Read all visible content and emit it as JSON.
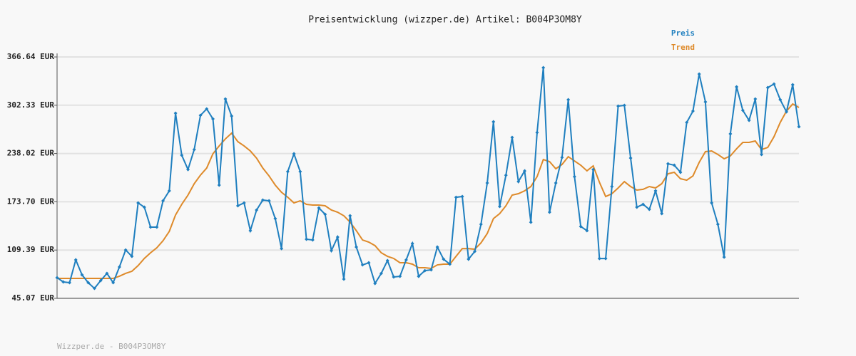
{
  "chart_data": {
    "type": "line",
    "title": "Preisentwicklung (wizzper.de) Artikel: B004P3OM8Y",
    "legend": "top-right",
    "grid": true,
    "categories": [
      null,
      null,
      null,
      null,
      null,
      null,
      null,
      null,
      null,
      null,
      null,
      null,
      null,
      null,
      null,
      null,
      null,
      null,
      null,
      null,
      null,
      null,
      null,
      null,
      null,
      null,
      null,
      null,
      null,
      null,
      null,
      null,
      null,
      null,
      null,
      null,
      null,
      null,
      null,
      null,
      null,
      null,
      null,
      null,
      null,
      null,
      null,
      null,
      null,
      null,
      null,
      null,
      null,
      null,
      null,
      null,
      null,
      null,
      null,
      null,
      null,
      null,
      null,
      null,
      null,
      null,
      null,
      null,
      null,
      null,
      null,
      null,
      null,
      null,
      null,
      null,
      null,
      null,
      null,
      null,
      null,
      null,
      null,
      null,
      null,
      null,
      null,
      null,
      null,
      null,
      null,
      null,
      null,
      null,
      null,
      null,
      null,
      null,
      null,
      null,
      null,
      null,
      null,
      null,
      null,
      null,
      null,
      null,
      null,
      null,
      null,
      null,
      null,
      null,
      null,
      null,
      null,
      null,
      null,
      null
    ],
    "ylim": [
      45.07,
      366.64
    ],
    "yticks": [
      {
        "value": 45.07,
        "label": "45.07 EUR"
      },
      {
        "value": 109.39,
        "label": "109.39 EUR"
      },
      {
        "value": 173.7,
        "label": "173.70 EUR"
      },
      {
        "value": 238.02,
        "label": "238.02 EUR"
      },
      {
        "value": 302.33,
        "label": "302.33 EUR"
      },
      {
        "value": 366.64,
        "label": "366.64 EUR"
      }
    ],
    "series": [
      {
        "name": "Preis",
        "color": "#1f7fbf",
        "markers": true,
        "values": [
          72.6,
          66.9,
          65.9,
          96.3,
          76.4,
          65.9,
          58.3,
          68.8,
          78.3,
          65.9,
          86.8,
          109.5,
          101.0,
          172.2,
          166.5,
          139.9,
          139.9,
          175.0,
          188.3,
          291.7,
          235.7,
          216.7,
          243.3,
          288.8,
          297.4,
          284.1,
          195.9,
          310.7,
          287.9,
          168.4,
          172.2,
          135.2,
          162.7,
          176.0,
          175.0,
          151.3,
          111.4,
          213.9,
          237.6,
          213.9,
          123.8,
          122.8,
          165.5,
          157.0,
          108.6,
          126.6,
          70.7,
          155.1,
          113.4,
          89.6,
          92.5,
          64.9,
          78.3,
          95.3,
          73.5,
          74.4,
          96.3,
          118.1,
          74.4,
          82.0,
          83.0,
          113.4,
          97.2,
          90.6,
          179.7,
          180.7,
          97.2,
          107.6,
          143.7,
          198.7,
          280.3,
          167.4,
          209.1,
          259.4,
          200.6,
          214.8,
          146.5,
          266.0,
          352.4,
          159.8,
          198.7,
          232.8,
          309.7,
          207.2,
          140.8,
          135.2,
          216.7,
          98.1,
          98.1,
          194.0,
          301.2,
          302.1,
          231.9,
          166.5,
          170.3,
          163.6,
          188.3,
          157.9,
          224.3,
          222.4,
          213.0,
          279.4,
          294.5,
          343.9,
          306.8,
          172.2,
          143.7,
          100.0,
          264.2,
          326.8,
          295.5,
          282.2,
          310.7,
          236.7,
          325.8,
          330.6,
          309.7,
          293.6,
          329.6,
          273.7
        ]
      },
      {
        "name": "Trend",
        "color": "#de8a2a",
        "markers": false,
        "values": [
          71.6,
          71.6,
          71.6,
          71.6,
          71.6,
          71.6,
          71.6,
          71.6,
          71.6,
          71.6,
          74.5,
          78.3,
          81.1,
          88.7,
          98.2,
          105.8,
          112.4,
          121.9,
          134.2,
          156.0,
          170.3,
          182.6,
          197.8,
          209.2,
          218.6,
          237.6,
          248.1,
          257.5,
          265.1,
          253.8,
          248.1,
          241.4,
          231.9,
          218.6,
          208.2,
          195.9,
          186.4,
          179.8,
          172.2,
          175.0,
          170.3,
          169.3,
          169.3,
          168.4,
          162.7,
          159.8,
          155.1,
          146.6,
          135.2,
          122.8,
          120.0,
          115.3,
          105.8,
          101.0,
          98.2,
          92.5,
          92.5,
          90.6,
          85.8,
          85.8,
          84.9,
          89.6,
          90.6,
          90.6,
          101.0,
          111.4,
          111.4,
          110.5,
          119.0,
          131.4,
          151.3,
          157.9,
          168.4,
          182.6,
          184.5,
          188.3,
          194.0,
          207.2,
          230.0,
          227.2,
          217.7,
          223.4,
          233.8,
          228.1,
          222.4,
          214.9,
          221.5,
          199.7,
          180.7,
          184.5,
          192.1,
          200.6,
          194.0,
          189.3,
          190.3,
          194.0,
          192.1,
          197.8,
          211.1,
          213.0,
          204.4,
          202.5,
          208.2,
          226.2,
          240.5,
          241.4,
          236.7,
          231.0,
          234.8,
          244.3,
          252.8,
          252.8,
          254.7,
          243.3,
          246.1,
          260.4,
          279.4,
          294.5,
          304.0,
          299.3
        ]
      }
    ]
  },
  "footer": "Wizzper.de - B004P3OM8Y"
}
